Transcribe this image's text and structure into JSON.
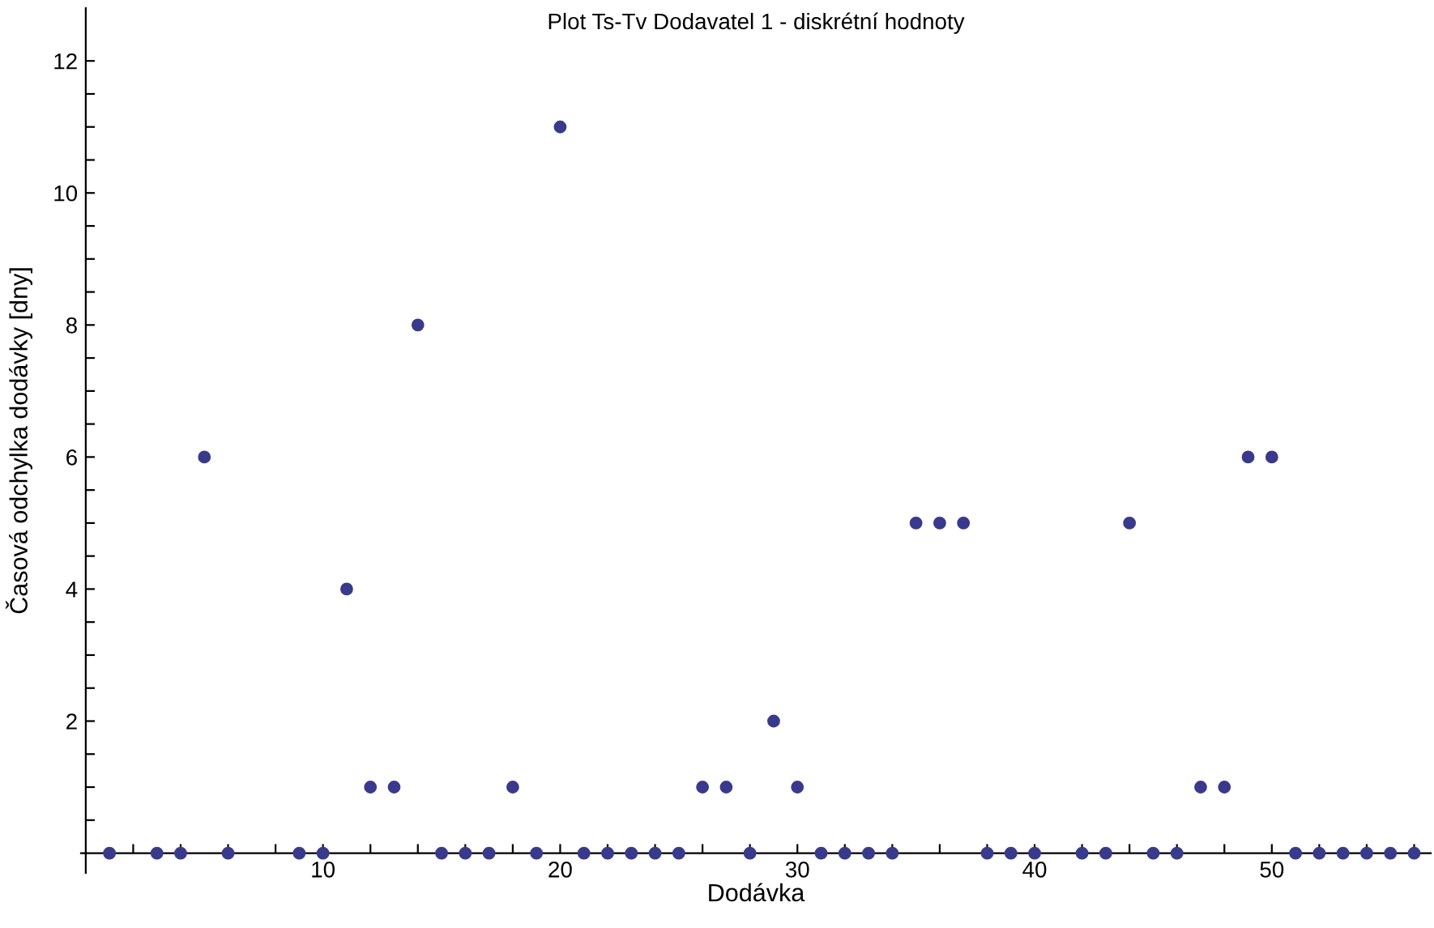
{
  "chart_data": {
    "type": "scatter",
    "title": "Plot Ts-Tv Dodavatel 1 - diskrétní hodnoty",
    "xlabel": "Dodávka",
    "ylabel": "Časová odchylka dodávky [dny]",
    "x": [
      1,
      3,
      4,
      5,
      6,
      9,
      10,
      11,
      12,
      13,
      14,
      15,
      16,
      17,
      18,
      19,
      20,
      21,
      22,
      23,
      24,
      25,
      26,
      27,
      28,
      29,
      30,
      31,
      32,
      33,
      34,
      35,
      36,
      37,
      38,
      39,
      40,
      42,
      43,
      44,
      45,
      46,
      47,
      48,
      49,
      50,
      51,
      52,
      53,
      54,
      55,
      56
    ],
    "series": [
      {
        "color": "#3a3a8c",
        "values": [
          0,
          0,
          0,
          6,
          0,
          0,
          0,
          4,
          1,
          1,
          8,
          0,
          0,
          0,
          1,
          0,
          11,
          0,
          0,
          0,
          0,
          0,
          1,
          1,
          0,
          2,
          1,
          0,
          0,
          0,
          0,
          5,
          5,
          5,
          0,
          0,
          0,
          0,
          0,
          5,
          0,
          0,
          1,
          1,
          6,
          6,
          0,
          0,
          0,
          0,
          0,
          0
        ]
      }
    ],
    "xlim": [
      -0.2,
      56.7
    ],
    "ylim": [
      -0.3,
      12.8
    ],
    "xticks": [
      {
        "value": 2,
        "label": null
      },
      {
        "value": 4,
        "label": null
      },
      {
        "value": 6,
        "label": null
      },
      {
        "value": 8,
        "label": null
      },
      10,
      {
        "value": 12,
        "label": null
      },
      {
        "value": 14,
        "label": null
      },
      {
        "value": 16,
        "label": null
      },
      {
        "value": 18,
        "label": null
      },
      20,
      {
        "value": 22,
        "label": null
      },
      {
        "value": 24,
        "label": null
      },
      {
        "value": 26,
        "label": null
      },
      {
        "value": 28,
        "label": null
      },
      30,
      {
        "value": 32,
        "label": null
      },
      {
        "value": 34,
        "label": null
      },
      {
        "value": 36,
        "label": null
      },
      {
        "value": 38,
        "label": null
      },
      40,
      {
        "value": 42,
        "label": null
      },
      {
        "value": 44,
        "label": null
      },
      {
        "value": 46,
        "label": null
      },
      {
        "value": 48,
        "label": null
      },
      50,
      {
        "value": 52,
        "label": null
      },
      {
        "value": 54,
        "label": null
      },
      {
        "value": 56,
        "label": null
      }
    ],
    "yticks": [
      {
        "value": 0.5,
        "label": null
      },
      {
        "value": 1,
        "label": null
      },
      {
        "value": 1.5,
        "label": null
      },
      2,
      {
        "value": 2.5,
        "label": null
      },
      {
        "value": 3,
        "label": null
      },
      {
        "value": 3.5,
        "label": null
      },
      4,
      {
        "value": 4.5,
        "label": null
      },
      {
        "value": 5,
        "label": null
      },
      {
        "value": 5.5,
        "label": null
      },
      6,
      {
        "value": 6.5,
        "label": null
      },
      {
        "value": 7,
        "label": null
      },
      {
        "value": 7.5,
        "label": null
      },
      8,
      {
        "value": 8.5,
        "label": null
      },
      {
        "value": 9,
        "label": null
      },
      {
        "value": 9.5,
        "label": null
      },
      10,
      {
        "value": 10.5,
        "label": null
      },
      {
        "value": 11,
        "label": null
      },
      {
        "value": 11.5,
        "label": null
      },
      12
    ],
    "grid": false,
    "marker": "circle"
  }
}
